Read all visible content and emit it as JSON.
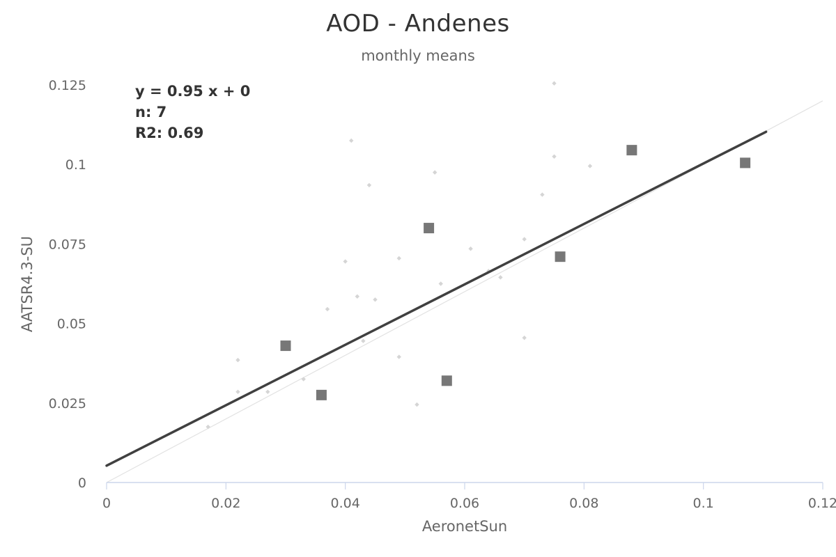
{
  "title": "AOD - Andenes",
  "subtitle": "monthly means",
  "stats": {
    "equation": "y = 0.95 x + 0",
    "n": "n: 7",
    "r2": "R2: 0.69"
  },
  "colors": {
    "background": "#ffffff",
    "main_series": "#777777",
    "background_series": "#d5d5d5",
    "fit_line": "#404040",
    "identity_line": "#e2e2e2",
    "axis": "#ccd6eb"
  },
  "chart_data": {
    "type": "scatter",
    "title": "AOD - Andenes",
    "subtitle": "monthly means",
    "xlabel": "AeronetSun",
    "ylabel": "AATSR4.3-SU",
    "xlim": [
      0,
      0.12
    ],
    "ylim": [
      0,
      0.125
    ],
    "x_ticks": [
      "0",
      "0.02",
      "0.04",
      "0.06",
      "0.08",
      "0.1",
      "0.12"
    ],
    "y_ticks": [
      "0",
      "0.025",
      "0.05",
      "0.075",
      "0.1",
      "0.125"
    ],
    "grid": false,
    "series": [
      {
        "marker": "square",
        "points": [
          [
            0.03,
            0.043
          ],
          [
            0.036,
            0.0275
          ],
          [
            0.054,
            0.08
          ],
          [
            0.057,
            0.032
          ],
          [
            0.076,
            0.071
          ],
          [
            0.088,
            0.1045
          ],
          [
            0.107,
            0.1005
          ]
        ]
      },
      {
        "marker": "diamond",
        "points": [
          [
            0.017,
            0.0175
          ],
          [
            0.022,
            0.0385
          ],
          [
            0.022,
            0.0285
          ],
          [
            0.027,
            0.0285
          ],
          [
            0.033,
            0.0325
          ],
          [
            0.037,
            0.0545
          ],
          [
            0.04,
            0.0695
          ],
          [
            0.041,
            0.1075
          ],
          [
            0.042,
            0.0585
          ],
          [
            0.043,
            0.0445
          ],
          [
            0.044,
            0.0935
          ],
          [
            0.045,
            0.0575
          ],
          [
            0.049,
            0.0705
          ],
          [
            0.049,
            0.0395
          ],
          [
            0.052,
            0.0245
          ],
          [
            0.055,
            0.0975
          ],
          [
            0.056,
            0.0625
          ],
          [
            0.061,
            0.0735
          ],
          [
            0.064,
            0.0665
          ],
          [
            0.066,
            0.0645
          ],
          [
            0.07,
            0.0765
          ],
          [
            0.07,
            0.0455
          ],
          [
            0.073,
            0.0905
          ],
          [
            0.075,
            0.1255
          ],
          [
            0.075,
            0.1025
          ],
          [
            0.081,
            0.0995
          ]
        ]
      }
    ],
    "fit_line": {
      "slope": 0.95,
      "intercept": 0.0053,
      "x_range": [
        0,
        0.1105
      ]
    },
    "identity_line": {
      "x_range": [
        0,
        0.12
      ]
    }
  }
}
